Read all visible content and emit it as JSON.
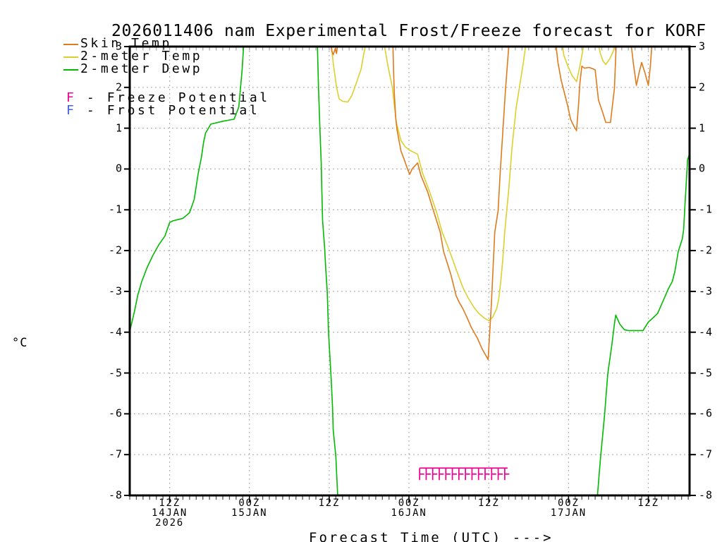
{
  "title": "2026011406 nam Experimental Frost/Freeze forecast for KORF",
  "ylabel": "°C",
  "xlabel": "Forecast Time (UTC) --->",
  "colors": {
    "skin_temp": "#e07a1b",
    "temp_2m": "#ddd02c",
    "dewp_2m": "#00bb00",
    "freeze": "#ee0090",
    "frost": "#4060e0",
    "grid": "#a8a8a8",
    "axis": "#000000",
    "minor_tick_top": "#aaaaaa",
    "minor_tick_bottom": "#555555"
  },
  "legend": {
    "series": [
      {
        "label": "Skin Temp",
        "color": "#e07a1b"
      },
      {
        "label": "2-meter Temp",
        "color": "#ddd02c"
      },
      {
        "label": "2-meter Dewp",
        "color": "#00bb00"
      }
    ],
    "potentials": [
      {
        "symbol": "F",
        "color": "#ee0090",
        "label": " - Freeze Potential"
      },
      {
        "symbol": "F",
        "color": "#4060e0",
        "label": " - Frost Potential"
      }
    ]
  },
  "chart_data": {
    "type": "line",
    "title": "2026011406 nam Experimental Frost/Freeze forecast for KORF",
    "xlabel": "Forecast Time (UTC) --->",
    "ylabel": "°C",
    "x_axis_note": "forecast hours after 2026-01-14 06Z",
    "axis": {
      "t_min": 0,
      "t_max": 84.2,
      "v_min": -8,
      "v_max": 3,
      "grid": true
    },
    "x_ticks": [
      {
        "t": 6,
        "lines": [
          "12Z",
          "14JAN",
          "2026"
        ]
      },
      {
        "t": 18,
        "lines": [
          "00Z",
          "15JAN"
        ]
      },
      {
        "t": 30,
        "lines": [
          "12Z"
        ]
      },
      {
        "t": 42,
        "lines": [
          "00Z",
          "16JAN"
        ]
      },
      {
        "t": 54,
        "lines": [
          "12Z"
        ]
      },
      {
        "t": 66,
        "lines": [
          "00Z",
          "17JAN"
        ]
      },
      {
        "t": 78,
        "lines": [
          "12Z"
        ]
      }
    ],
    "y_ticks": [
      {
        "v": 3,
        "label": "3"
      },
      {
        "v": 2,
        "label": "2"
      },
      {
        "v": 1,
        "label": "1"
      },
      {
        "v": 0,
        "label": "0"
      },
      {
        "v": -1,
        "label": "-1"
      },
      {
        "v": -2,
        "label": "-2"
      },
      {
        "v": -3,
        "label": "-3"
      },
      {
        "v": -4,
        "label": "-4"
      },
      {
        "v": -5,
        "label": "-5"
      },
      {
        "v": -6,
        "label": "-6"
      },
      {
        "v": -7,
        "label": "-7"
      },
      {
        "v": -8,
        "label": "-8"
      }
    ],
    "series": [
      {
        "name": "2-meter Dewp",
        "color": "#00bb00",
        "segments": [
          [
            [
              0,
              -3.98
            ],
            [
              0.7,
              -3.5
            ],
            [
              1.2,
              -3.1
            ],
            [
              1.8,
              -2.76
            ],
            [
              2.6,
              -2.42
            ],
            [
              3.5,
              -2.11
            ],
            [
              4.4,
              -1.85
            ],
            [
              5.3,
              -1.64
            ],
            [
              6,
              -1.31
            ],
            [
              6.5,
              -1.27
            ],
            [
              8,
              -1.21
            ],
            [
              9,
              -1.07
            ],
            [
              9.7,
              -0.74
            ],
            [
              10.3,
              -0.11
            ],
            [
              10.8,
              0.3
            ],
            [
              11.1,
              0.65
            ],
            [
              11.4,
              0.88
            ],
            [
              12.2,
              1.1
            ],
            [
              14,
              1.17
            ],
            [
              15.7,
              1.22
            ],
            [
              16.4,
              1.52
            ],
            [
              16.9,
              2.43
            ],
            [
              17.2,
              3.2
            ]
          ],
          [
            [
              28.2,
              3.2
            ],
            [
              28.4,
              1.95
            ],
            [
              28.6,
              1.0
            ],
            [
              28.8,
              0.13
            ],
            [
              29.0,
              -1.26
            ],
            [
              29.3,
              -1.9
            ],
            [
              29.5,
              -2.5
            ],
            [
              29.7,
              -3.0
            ],
            [
              29.9,
              -4.03
            ],
            [
              30.3,
              -5.14
            ],
            [
              30.5,
              -5.83
            ],
            [
              30.6,
              -6.4
            ],
            [
              31.0,
              -7.04
            ],
            [
              31.3,
              -8.1
            ]
          ],
          [
            [
              70.3,
              -8.1
            ],
            [
              70.8,
              -7.1
            ],
            [
              71.4,
              -6.06
            ],
            [
              71.9,
              -5.02
            ],
            [
              72.5,
              -4.32
            ],
            [
              72.9,
              -3.8
            ],
            [
              73.1,
              -3.58
            ],
            [
              73.7,
              -3.8
            ],
            [
              74.4,
              -3.94
            ],
            [
              75,
              -3.96
            ],
            [
              77.2,
              -3.96
            ],
            [
              78,
              -3.75
            ],
            [
              78.7,
              -3.65
            ],
            [
              79.4,
              -3.54
            ],
            [
              80.1,
              -3.28
            ],
            [
              81,
              -2.94
            ],
            [
              81.6,
              -2.76
            ],
            [
              82,
              -2.5
            ],
            [
              82.5,
              -2.02
            ],
            [
              83.1,
              -1.72
            ],
            [
              83.3,
              -1.5
            ],
            [
              83.5,
              -0.91
            ],
            [
              83.7,
              -0.34
            ],
            [
              83.9,
              0.23
            ],
            [
              84.2,
              0.38
            ]
          ]
        ]
      },
      {
        "name": "2-meter Temp",
        "color": "#ddd02c",
        "segments": [
          [
            [
              30.2,
              3.2
            ],
            [
              30.6,
              2.6
            ],
            [
              31.1,
              2.0
            ],
            [
              31.5,
              1.72
            ],
            [
              32.0,
              1.66
            ],
            [
              32.8,
              1.64
            ],
            [
              33.4,
              1.8
            ],
            [
              34.1,
              2.12
            ],
            [
              34.8,
              2.45
            ],
            [
              35.2,
              2.82
            ],
            [
              35.7,
              3.2
            ]
          ],
          [
            [
              38.2,
              3.2
            ],
            [
              38.4,
              2.94
            ],
            [
              38.9,
              2.47
            ],
            [
              39.5,
              2.0
            ],
            [
              39.8,
              1.55
            ],
            [
              40.1,
              1.14
            ],
            [
              40.5,
              0.88
            ],
            [
              40.8,
              0.7
            ],
            [
              41.4,
              0.55
            ],
            [
              42.1,
              0.46
            ],
            [
              42.7,
              0.41
            ],
            [
              43.3,
              0.36
            ],
            [
              44,
              -0.08
            ],
            [
              45.1,
              -0.56
            ],
            [
              46.1,
              -1.03
            ],
            [
              47,
              -1.55
            ],
            [
              48.3,
              -2.1
            ],
            [
              49,
              -2.42
            ],
            [
              50.1,
              -2.9
            ],
            [
              50.9,
              -3.16
            ],
            [
              51.8,
              -3.4
            ],
            [
              52.5,
              -3.54
            ],
            [
              53.3,
              -3.65
            ],
            [
              54,
              -3.72
            ],
            [
              54.6,
              -3.63
            ],
            [
              55.2,
              -3.42
            ],
            [
              55.5,
              -3.18
            ],
            [
              55.8,
              -2.76
            ],
            [
              56.1,
              -2.24
            ],
            [
              56.4,
              -1.55
            ],
            [
              57,
              -0.51
            ],
            [
              57.5,
              0.53
            ],
            [
              58.1,
              1.48
            ],
            [
              58.7,
              2.09
            ],
            [
              59.2,
              2.61
            ],
            [
              59.7,
              3.2
            ]
          ],
          [
            [
              64.9,
              3.2
            ],
            [
              65.3,
              2.78
            ],
            [
              65.9,
              2.52
            ],
            [
              66.5,
              2.3
            ],
            [
              67.2,
              2.14
            ],
            [
              67.7,
              2.52
            ],
            [
              68.1,
              2.87
            ],
            [
              68.4,
              3.2
            ]
          ],
          [
            [
              70.3,
              3.2
            ],
            [
              70.8,
              2.82
            ],
            [
              71.2,
              2.64
            ],
            [
              71.6,
              2.56
            ],
            [
              72.2,
              2.7
            ],
            [
              72.7,
              2.87
            ],
            [
              73.1,
              3.2
            ]
          ]
        ]
      },
      {
        "name": "Skin Temp",
        "color": "#e07a1b",
        "segments": [
          [
            [
              30.1,
              3.2
            ],
            [
              30.4,
              2.89
            ],
            [
              30.6,
              2.8
            ],
            [
              30.9,
              2.95
            ],
            [
              31.1,
              2.83
            ],
            [
              31.4,
              3.2
            ]
          ],
          [
            [
              39.55,
              3.2
            ],
            [
              39.7,
              2.3
            ],
            [
              39.8,
              1.83
            ],
            [
              40,
              1.26
            ],
            [
              40.2,
              0.96
            ],
            [
              40.5,
              0.7
            ],
            [
              40.8,
              0.44
            ],
            [
              41.3,
              0.22
            ],
            [
              41.7,
              0.04
            ],
            [
              42.1,
              -0.13
            ],
            [
              42.5,
              0.01
            ],
            [
              43.3,
              0.15
            ],
            [
              43.8,
              -0.16
            ],
            [
              44.8,
              -0.56
            ],
            [
              45.7,
              -1.03
            ],
            [
              46.7,
              -1.55
            ],
            [
              47.2,
              -2.02
            ],
            [
              48.3,
              -2.59
            ],
            [
              49.1,
              -3.11
            ],
            [
              49.6,
              -3.28
            ],
            [
              50.1,
              -3.42
            ],
            [
              50.7,
              -3.63
            ],
            [
              51.4,
              -3.89
            ],
            [
              52.3,
              -4.15
            ],
            [
              53,
              -4.41
            ],
            [
              53.9,
              -4.67
            ],
            [
              54.4,
              -3.28
            ],
            [
              54.9,
              -1.55
            ],
            [
              55.4,
              -1.03
            ],
            [
              55.7,
              -0.16
            ],
            [
              56.1,
              0.88
            ],
            [
              56.5,
              1.91
            ],
            [
              57.1,
              3.2
            ]
          ],
          [
            [
              64,
              3.2
            ],
            [
              64.4,
              2.61
            ],
            [
              64.9,
              2.17
            ],
            [
              65.3,
              1.91
            ],
            [
              65.9,
              1.53
            ],
            [
              66.3,
              1.22
            ],
            [
              66.8,
              1.05
            ],
            [
              67.2,
              0.94
            ],
            [
              67.5,
              1.57
            ],
            [
              67.7,
              2.09
            ],
            [
              68,
              2.52
            ],
            [
              68.4,
              2.47
            ],
            [
              69.1,
              2.49
            ],
            [
              69.7,
              2.45
            ],
            [
              70,
              2.43
            ],
            [
              70.5,
              1.69
            ],
            [
              71.1,
              1.4
            ],
            [
              71.6,
              1.14
            ],
            [
              72.3,
              1.14
            ],
            [
              72.9,
              1.97
            ],
            [
              73.2,
              3.2
            ]
          ],
          [
            [
              75.3,
              3.2
            ],
            [
              75.8,
              2.52
            ],
            [
              76.2,
              2.05
            ],
            [
              76.6,
              2.35
            ],
            [
              77,
              2.61
            ],
            [
              77.5,
              2.35
            ],
            [
              78,
              2.05
            ],
            [
              78.3,
              2.52
            ],
            [
              78.6,
              3.2
            ]
          ]
        ]
      },
      {
        "name": "Freeze Potential markers",
        "color": "#ee0090",
        "type": "freeze-flags",
        "t_start": 43.6,
        "t_end": 56.4,
        "level": -7.33,
        "count": 14,
        "glyph": "F"
      }
    ],
    "legend_position": "top-left"
  }
}
